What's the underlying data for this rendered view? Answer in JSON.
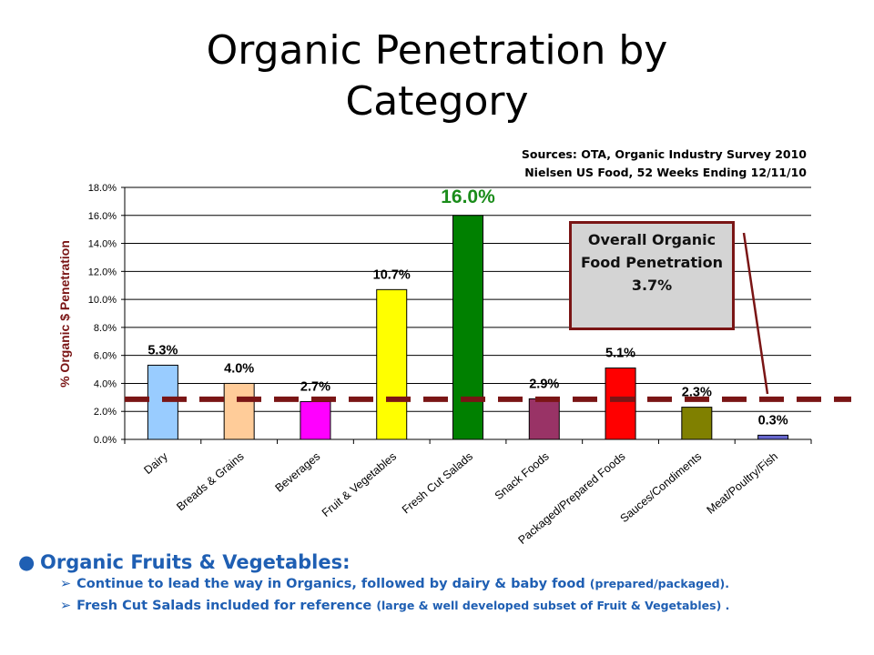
{
  "slide": {
    "title_line1": "Organic Penetration by",
    "title_line2": "Category",
    "sources_line1": "Sources: OTA, Organic Industry Survey 2010",
    "sources_line2": "Nielsen US Food, 52 Weeks Ending 12/11/10"
  },
  "callout": {
    "line1": "Overall Organic",
    "line2": "Food Penetration",
    "line3": "3.7%"
  },
  "bullets": {
    "main": "Organic Fruits & Vegetables:",
    "sub1_main": "Continue to lead the way in Organics, followed by dairy & baby food ",
    "sub1_small": "(prepared/packaged).",
    "sub2_main": "Fresh Cut Salads included for reference ",
    "sub2_small": "(large & well developed subset of Fruit & Vegetables) ."
  },
  "chart_data": {
    "type": "bar",
    "ylabel": "% Organic $ Penetration",
    "ylim": [
      0,
      18
    ],
    "yticks": [
      "0.0%",
      "2.0%",
      "4.0%",
      "6.0%",
      "8.0%",
      "10.0%",
      "12.0%",
      "14.0%",
      "16.0%",
      "18.0%"
    ],
    "grid": true,
    "categories": [
      "Dairy",
      "Breads & Grains",
      "Beverages",
      "Fruit & Vegetables",
      "Fresh Cut Salads",
      "Snack Foods",
      "Packaged/Prepared Foods",
      "Sauces/Condiments",
      "Meat/Poultry/Fish"
    ],
    "values": [
      5.3,
      4.0,
      2.7,
      10.7,
      16.0,
      2.9,
      5.1,
      2.3,
      0.3
    ],
    "data_labels": [
      "5.3%",
      "4.0%",
      "2.7%",
      "10.7%",
      "16.0%",
      "2.9%",
      "5.1%",
      "2.3%",
      "0.3%"
    ],
    "colors": [
      "#99ccff",
      "#ffcc99",
      "#ff00ff",
      "#ffff00",
      "#008000",
      "#993366",
      "#ff0000",
      "#808000",
      "#6666cc"
    ],
    "highlight_label_color": "#1a8c1a",
    "reference_line": {
      "value": 2.8,
      "color": "#7a1515",
      "style": "dashed"
    }
  }
}
